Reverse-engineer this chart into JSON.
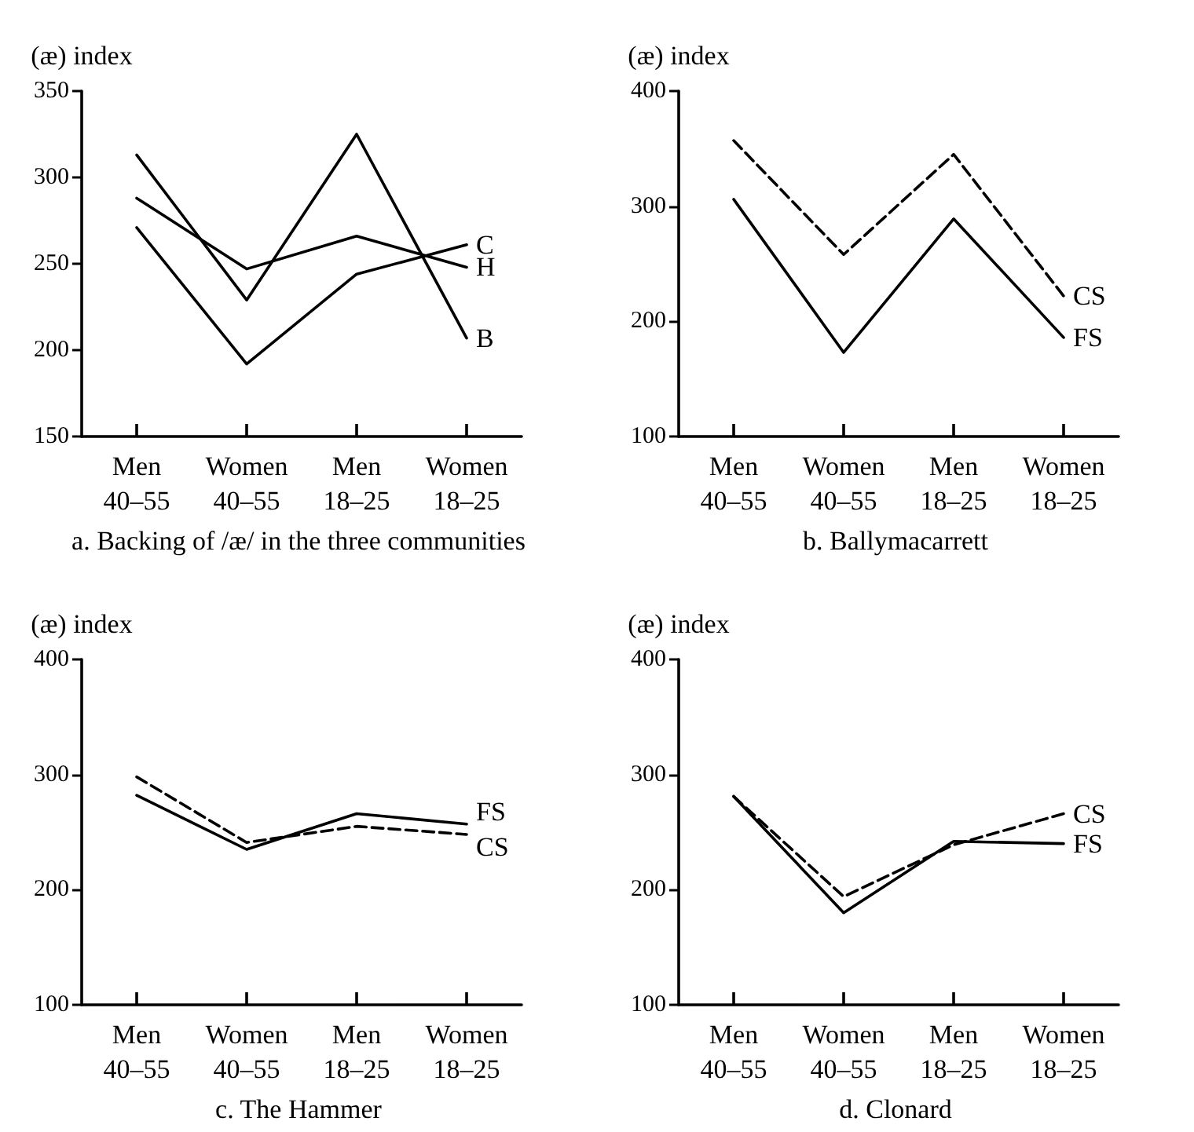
{
  "chart_data": [
    {
      "type": "line",
      "title": "a. Backing of /æ/ in the three communities",
      "ylabel": "(æ) index",
      "categories": [
        "Men 40–55",
        "Women 40–55",
        "Men 18–25",
        "Women 18–25"
      ],
      "ylim": [
        150,
        350
      ],
      "yticks": [
        150,
        200,
        250,
        300,
        350
      ],
      "grid": false,
      "legend": false,
      "marker": "none",
      "series": [
        {
          "name": "B",
          "color": "#000000",
          "line_style": "solid",
          "values": [
            313,
            229,
            325,
            207
          ]
        },
        {
          "name": "H",
          "color": "#000000",
          "line_style": "solid",
          "values": [
            288,
            247,
            266,
            248
          ]
        },
        {
          "name": "C",
          "color": "#000000",
          "line_style": "solid",
          "values": [
            271,
            192,
            244,
            261
          ]
        }
      ]
    },
    {
      "type": "line",
      "title": "b. Ballymacarrett",
      "ylabel": "(æ) index",
      "categories": [
        "Men 40–55",
        "Women 40–55",
        "Men 18–25",
        "Women 18–25"
      ],
      "ylim": [
        100,
        400
      ],
      "yticks": [
        100,
        200,
        300,
        400
      ],
      "grid": false,
      "legend": false,
      "marker": "none",
      "series": [
        {
          "name": "CS",
          "color": "#000000",
          "line_style": "dashed",
          "values": [
            357,
            258,
            345,
            222
          ]
        },
        {
          "name": "FS",
          "color": "#000000",
          "line_style": "solid",
          "values": [
            306,
            173,
            289,
            186
          ]
        }
      ]
    },
    {
      "type": "line",
      "title": "c. The Hammer",
      "ylabel": "(æ) index",
      "categories": [
        "Men 40–55",
        "Women 40–55",
        "Men 18–25",
        "Women 18–25"
      ],
      "ylim": [
        100,
        400
      ],
      "yticks": [
        100,
        200,
        300,
        400
      ],
      "grid": false,
      "legend": false,
      "marker": "none",
      "series": [
        {
          "name": "FS",
          "color": "#000000",
          "line_style": "solid",
          "values": [
            282,
            235,
            266,
            257
          ]
        },
        {
          "name": "CS",
          "color": "#000000",
          "line_style": "dashed",
          "values": [
            298,
            241,
            255,
            248
          ]
        }
      ]
    },
    {
      "type": "line",
      "title": "d. Clonard",
      "ylabel": "(æ) index",
      "categories": [
        "Men 40–55",
        "Women 40–55",
        "Men 18–25",
        "Women 18–25"
      ],
      "ylim": [
        100,
        400
      ],
      "yticks": [
        100,
        200,
        300,
        400
      ],
      "grid": false,
      "legend": false,
      "marker": "none",
      "series": [
        {
          "name": "CS",
          "color": "#000000",
          "line_style": "dashed",
          "values": [
            281,
            194,
            239,
            266
          ]
        },
        {
          "name": "FS",
          "color": "#000000",
          "line_style": "solid",
          "values": [
            281,
            180,
            242,
            240
          ]
        }
      ]
    }
  ]
}
